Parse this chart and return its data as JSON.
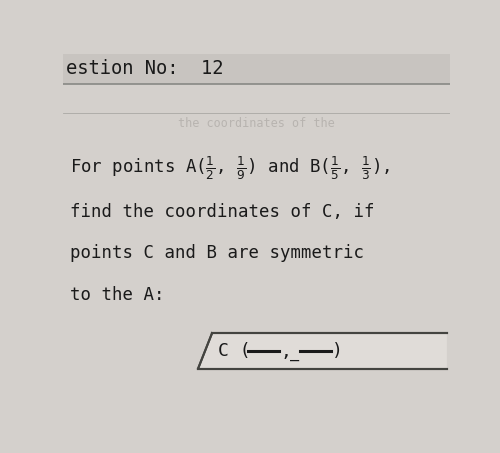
{
  "bg_color": "#d4d0cc",
  "header_bg": "#c8c4c0",
  "content_bg": "#d8d4d0",
  "header_text": "estion No:  12",
  "header_text_color": "#1a1a1a",
  "watermark_text": "the coordinates of the",
  "watermark_color": "#b8b4b0",
  "line1_prefix": "For points A(",
  "line2": "find the coordinates of C, if",
  "line3": "points C and B are symmetric",
  "line4": "to the A:",
  "text_color": "#1a1a1a",
  "box_facecolor": "#e0dcd8",
  "box_edgecolor": "#444440",
  "header_line_color": "#888884",
  "font_size": 12.5,
  "header_font_size": 13.5
}
